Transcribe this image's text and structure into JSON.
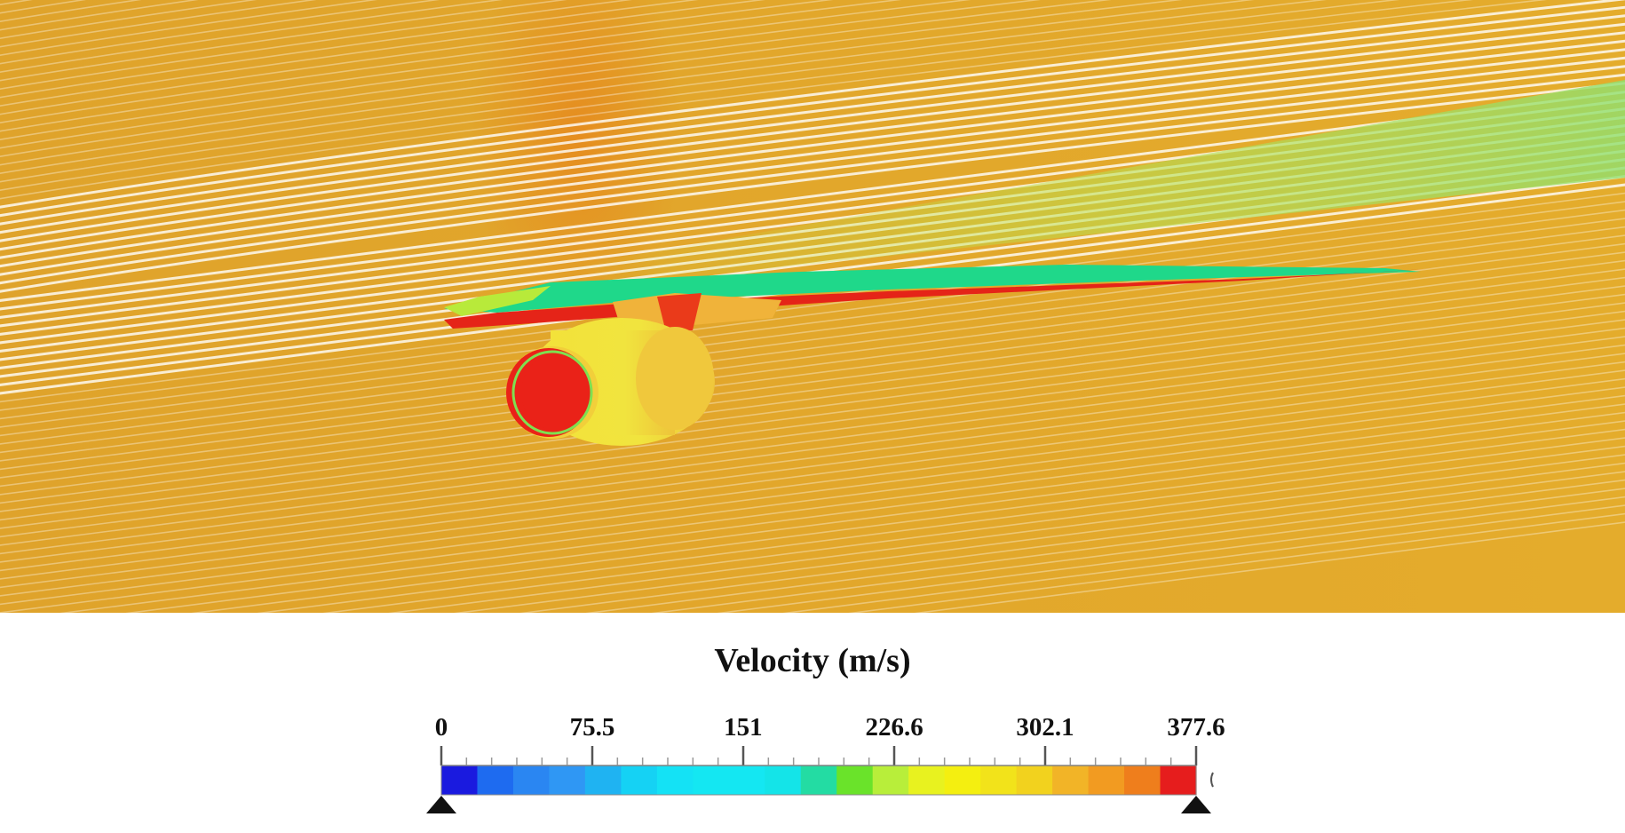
{
  "legend": {
    "title": "Velocity (m/s)",
    "min": 0,
    "max": 377.6,
    "tick_labels": [
      "0",
      "75.5",
      "151",
      "226.6",
      "302.1",
      "377.6"
    ],
    "tick_values": [
      0,
      75.5,
      151,
      226.6,
      302.1,
      377.6
    ],
    "band_colors": [
      "#1a1adf",
      "#1e6bf0",
      "#2a86f2",
      "#2f97f4",
      "#1fb3f2",
      "#15d2f4",
      "#14e2f5",
      "#14e7f2",
      "#14e7f2",
      "#14e4e8",
      "#23dca3",
      "#6ae32a",
      "#b8ee3a",
      "#e8f21f",
      "#f4ef10",
      "#f2e31a",
      "#f2d21e",
      "#f2b427",
      "#f29b21",
      "#ef7e1c",
      "#e61d1d"
    ]
  },
  "colors": {
    "background_flow": "#e2a52a",
    "streamline": "#ffffff",
    "wing_upper": "#1fd88a",
    "wing_lower": "#e52418",
    "nacelle_inlet": "#ea2218",
    "nacelle_body": "#f0e040"
  }
}
